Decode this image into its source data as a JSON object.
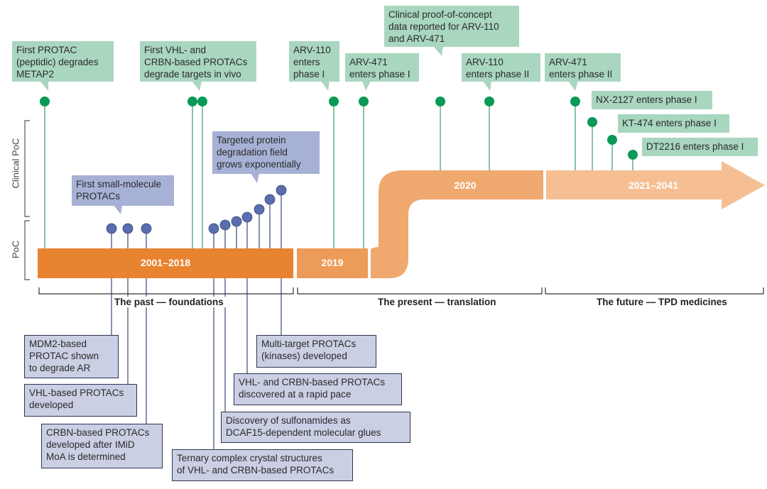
{
  "colors": {
    "green": "#0b9a56",
    "green_box": "#a9d6bf",
    "blue_dot": "#5a6dae",
    "blue_box": "#a7b1d5",
    "past_bar": "#e8832f",
    "present_bar": "#ed9b58",
    "future_bar": "#f5bf93"
  },
  "axis": {
    "clinical": "Clinical PoC",
    "poc": "PoC"
  },
  "bars": {
    "past": "2001–2018",
    "y2019": "2019",
    "y2020": "2020",
    "future": "2021–2041"
  },
  "eras": {
    "past": "The past — foundations",
    "present": "The present — translation",
    "future": "The future — TPD medicines"
  },
  "clinical_events": [
    "First PROTAC\n(peptidic) degrades\nMETAP2",
    "First VHL- and\nCRBN-based PROTACs\ndegrade targets in vivo",
    "ARV-110\nenters\nphase I",
    "ARV-471\nenters phase I",
    "Clinical proof-of-concept\ndata reported for ARV-110\nand ARV-471",
    "ARV-110\nenters phase II",
    "ARV-471\nenters phase II",
    "NX-2127 enters phase I",
    "KT-474 enters phase I",
    "DT2216 enters phase I"
  ],
  "poc_callouts": [
    "First small-molecule\nPROTACs",
    "Targeted protein\ndegradation field\ngrows exponentially"
  ],
  "poc_events": [
    "MDM2-based\nPROTAC shown\nto degrade AR",
    "VHL-based PROTACs\ndeveloped",
    "CRBN-based PROTACs\ndeveloped after IMiD\nMoA is determined",
    "Ternary complex crystal structures\nof VHL- and CRBN-based PROTACs",
    "Discovery of sulfonamides as\nDCAF15-dependent molecular glues",
    "VHL- and CRBN-based PROTACs\ndiscovered at a rapid pace",
    "Multi-target PROTACs\n(kinases) developed"
  ]
}
